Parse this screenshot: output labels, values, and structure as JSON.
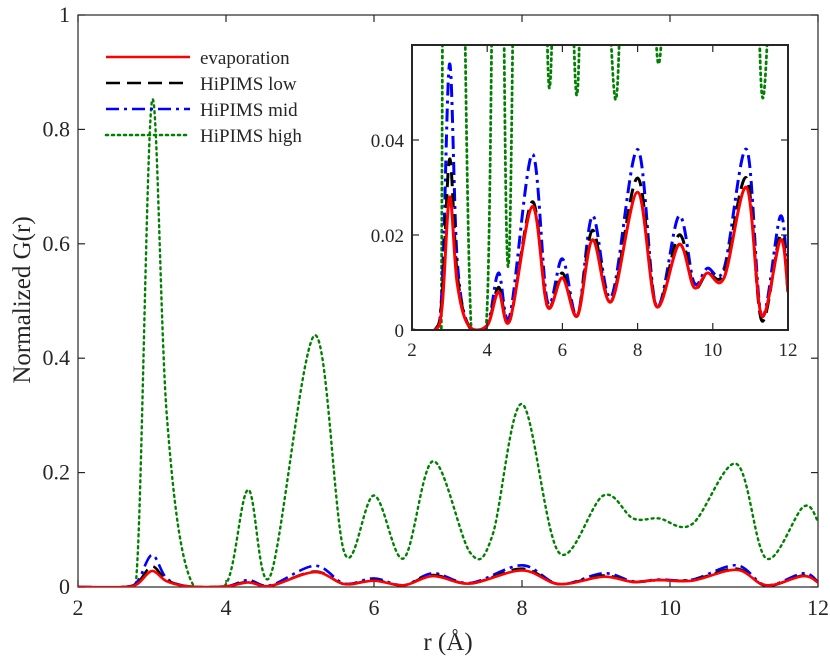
{
  "chart_data": [
    {
      "type": "line",
      "role": "main",
      "title": "",
      "xlabel": "r (Å)",
      "ylabel": "Normalized G(r)",
      "xlim": [
        2,
        12
      ],
      "ylim": [
        0,
        1
      ],
      "xticks": [
        "2",
        "4",
        "6",
        "8",
        "10",
        "12"
      ],
      "yticks": [
        "0",
        "0.2",
        "0.4",
        "0.6",
        "0.8",
        "1"
      ],
      "legend": {
        "position": "top-left",
        "entries": [
          "evaporation",
          "HiPIMS low",
          "HiPIMS mid",
          "HiPIMS high"
        ]
      },
      "series": [
        {
          "name": "evaporation",
          "color": "#ff0000",
          "style": "solid",
          "x": [
            2,
            2.6,
            2.8,
            3.0,
            3.2,
            3.5,
            4.0,
            4.3,
            4.6,
            5.2,
            5.6,
            6.0,
            6.4,
            6.8,
            7.3,
            8.0,
            8.5,
            9.1,
            9.5,
            9.85,
            10.3,
            10.9,
            11.3,
            11.8,
            12
          ],
          "y": [
            0,
            0,
            0.005,
            0.028,
            0.01,
            0.001,
            0.001,
            0.008,
            0.002,
            0.026,
            0.005,
            0.011,
            0.003,
            0.019,
            0.006,
            0.029,
            0.005,
            0.018,
            0.009,
            0.012,
            0.011,
            0.03,
            0.003,
            0.019,
            0.008
          ]
        },
        {
          "name": "HiPIMS low",
          "color": "#000000",
          "style": "dashed",
          "x": [
            2,
            2.6,
            2.8,
            3.0,
            3.2,
            3.5,
            4.0,
            4.3,
            4.6,
            5.2,
            5.6,
            6.0,
            6.4,
            6.8,
            7.3,
            8.0,
            8.5,
            9.1,
            9.5,
            9.85,
            10.3,
            10.9,
            11.3,
            11.8,
            12
          ],
          "y": [
            0,
            0,
            0.007,
            0.036,
            0.012,
            0.001,
            0.001,
            0.009,
            0.002,
            0.027,
            0.005,
            0.012,
            0.003,
            0.021,
            0.006,
            0.032,
            0.005,
            0.02,
            0.009,
            0.012,
            0.012,
            0.032,
            0.002,
            0.02,
            0.008
          ]
        },
        {
          "name": "HiPIMS mid",
          "color": "#0000ff",
          "style": "dashdot",
          "x": [
            2,
            2.6,
            2.8,
            3.0,
            3.2,
            3.5,
            4.0,
            4.3,
            4.6,
            5.2,
            5.6,
            6.0,
            6.4,
            6.8,
            7.3,
            8.0,
            8.5,
            9.1,
            9.5,
            9.85,
            10.3,
            10.9,
            11.3,
            11.8,
            12
          ],
          "y": [
            0,
            0,
            0.009,
            0.056,
            0.015,
            0.001,
            0.001,
            0.012,
            0.003,
            0.037,
            0.006,
            0.015,
            0.003,
            0.024,
            0.007,
            0.038,
            0.005,
            0.024,
            0.01,
            0.013,
            0.013,
            0.038,
            0.003,
            0.024,
            0.009
          ]
        },
        {
          "name": "HiPIMS high",
          "color": "#008000",
          "style": "dotted",
          "x": [
            2,
            2.6,
            2.8,
            3.0,
            3.2,
            3.5,
            4.0,
            4.3,
            4.6,
            5.2,
            5.6,
            6.0,
            6.4,
            6.8,
            7.3,
            7.6,
            8.0,
            8.5,
            9.1,
            9.5,
            9.85,
            10.3,
            10.9,
            11.3,
            11.8,
            12
          ],
          "y": [
            0,
            0,
            0.04,
            0.85,
            0.3,
            0.02,
            0.005,
            0.17,
            0.02,
            0.44,
            0.06,
            0.16,
            0.05,
            0.22,
            0.06,
            0.09,
            0.32,
            0.06,
            0.16,
            0.12,
            0.12,
            0.11,
            0.215,
            0.05,
            0.14,
            0.115
          ]
        }
      ]
    },
    {
      "type": "line",
      "role": "inset",
      "xlim": [
        2,
        12
      ],
      "ylim": [
        0,
        0.06
      ],
      "xticks": [
        "2",
        "4",
        "6",
        "8",
        "10",
        "12"
      ],
      "yticks": [
        "0",
        "0.02",
        "0.04"
      ],
      "note": "zoomed view of the same four series"
    }
  ]
}
